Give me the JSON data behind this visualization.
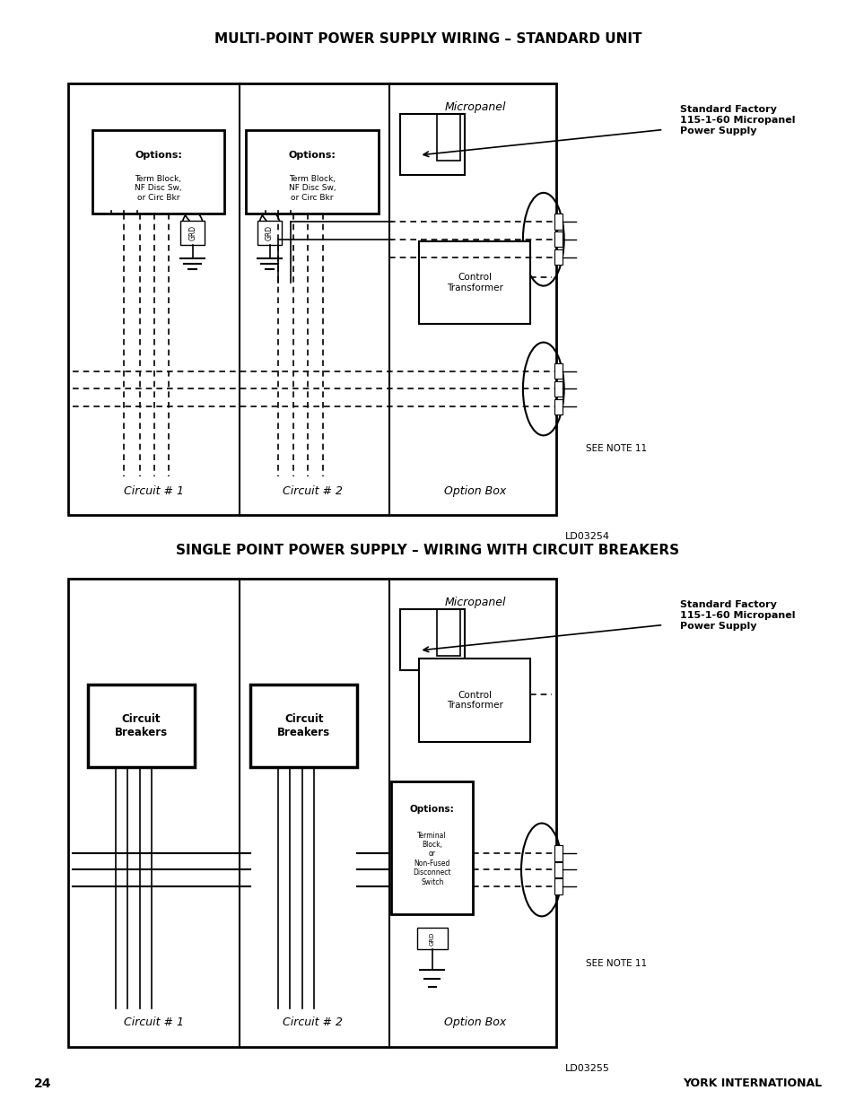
{
  "title1": "MULTI-POINT POWER SUPPLY WIRING – STANDARD UNIT",
  "title2": "SINGLE POINT POWER SUPPLY – WIRING WITH CIRCUIT BREAKERS",
  "page_num": "24",
  "company": "YORK INTERNATIONAL",
  "bg_color": "#ffffff"
}
